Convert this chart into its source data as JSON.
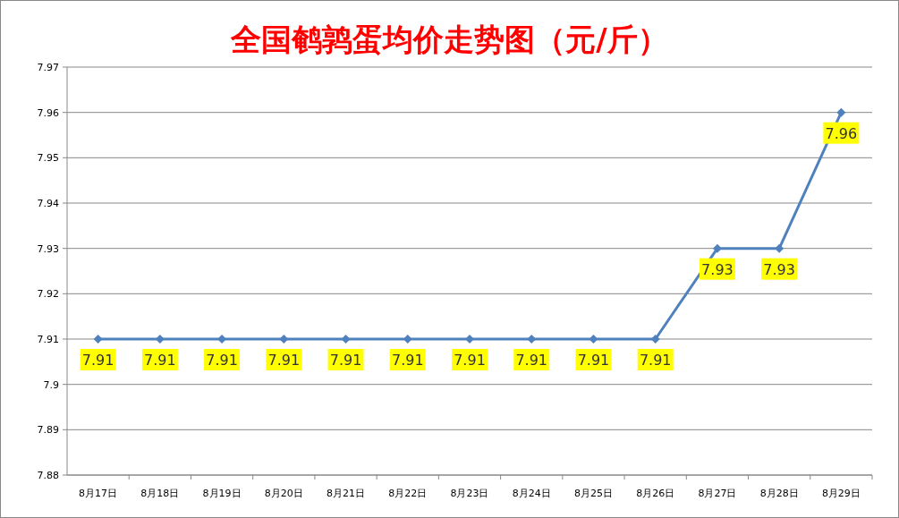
{
  "chart_data": {
    "type": "line",
    "title": "全国鹌鹑蛋均价走势图（元/斤）",
    "categories": [
      "8月17日",
      "8月18日",
      "8月19日",
      "8月20日",
      "8月21日",
      "8月22日",
      "8月23日",
      "8月24日",
      "8月25日",
      "8月26日",
      "8月27日",
      "8月28日",
      "8月29日"
    ],
    "series": [
      {
        "color": "#4f81bd",
        "values": [
          7.91,
          7.91,
          7.91,
          7.91,
          7.91,
          7.91,
          7.91,
          7.91,
          7.91,
          7.91,
          7.93,
          7.93,
          7.96
        ]
      }
    ],
    "ylim": [
      7.88,
      7.97
    ],
    "yticks": [
      7.88,
      7.89,
      7.9,
      7.91,
      7.92,
      7.93,
      7.94,
      7.95,
      7.96,
      7.97
    ],
    "grid": "y",
    "marker": "diamond",
    "data_labels": true
  }
}
